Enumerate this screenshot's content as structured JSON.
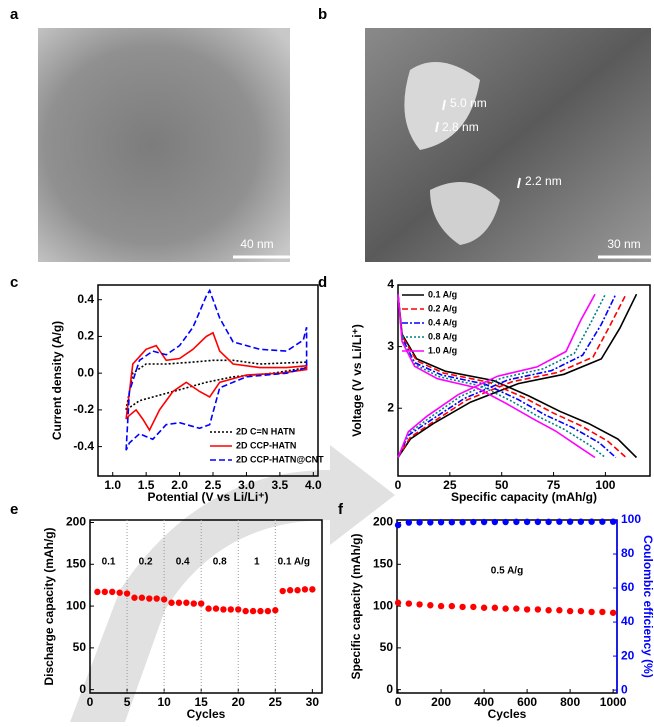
{
  "images": [
    {
      "panel": "a",
      "scale_bar": "40 nm"
    },
    {
      "panel": "b",
      "scale_bar": "30 nm",
      "annotations": [
        "5.0 nm",
        "2.8 nm",
        "2.2 nm"
      ]
    }
  ],
  "chart_data": [
    {
      "panel": "c",
      "type": "line",
      "xlabel": "Potential (V vs Li/Li⁺)",
      "ylabel": "Current density (A/g)",
      "xlim": [
        0.78,
        4.07
      ],
      "ylim": [
        -0.56,
        0.48
      ],
      "xticks": [
        {
          "value": 1,
          "label": "1.0"
        },
        1.5,
        {
          "value": 2,
          "label": "2.0"
        },
        2.5,
        {
          "value": 3,
          "label": "3.0"
        },
        3.5,
        {
          "value": 4,
          "label": "4.0"
        }
      ],
      "yticks": [
        -0.4,
        -0.2,
        {
          "value": 0,
          "label": "0.0"
        },
        0.2,
        0.4
      ],
      "legend": "lower right",
      "series": [
        {
          "name": "2D C=N HATN",
          "color": "#000000",
          "linestyle": "dotted",
          "x": [
            1.2,
            1.3,
            1.5,
            1.8,
            2.2,
            2.5,
            2.8,
            3.2,
            3.9,
            3.9,
            3.4,
            2.8,
            2.4,
            2.0,
            1.6,
            1.4,
            1.2
          ],
          "values": [
            -0.2,
            0.0,
            0.05,
            0.05,
            0.06,
            0.07,
            0.07,
            0.05,
            0.06,
            0.03,
            0.0,
            -0.02,
            -0.05,
            -0.09,
            -0.13,
            -0.15,
            -0.2
          ]
        },
        {
          "name": "2D CCP-HATN",
          "color": "#ff0000",
          "linestyle": "solid",
          "x": [
            1.2,
            1.3,
            1.5,
            1.65,
            1.8,
            2.0,
            2.2,
            2.4,
            2.5,
            2.6,
            2.8,
            3.2,
            3.6,
            3.9,
            3.9,
            3.5,
            3.0,
            2.6,
            2.45,
            2.3,
            2.1,
            1.9,
            1.7,
            1.55,
            1.45,
            1.35,
            1.25,
            1.2
          ],
          "values": [
            -0.25,
            0.05,
            0.13,
            0.15,
            0.07,
            0.08,
            0.13,
            0.2,
            0.22,
            0.12,
            0.05,
            0.03,
            0.03,
            0.04,
            0.02,
            0.0,
            -0.01,
            -0.05,
            -0.13,
            -0.1,
            -0.05,
            -0.1,
            -0.2,
            -0.31,
            -0.25,
            -0.2,
            -0.23,
            -0.25
          ]
        },
        {
          "name": "2D CCP-HATN@CNT",
          "color": "#0000ff",
          "linestyle": "dashed",
          "x": [
            1.2,
            1.25,
            1.4,
            1.6,
            1.8,
            2.0,
            2.2,
            2.4,
            2.45,
            2.6,
            2.8,
            3.2,
            3.6,
            3.85,
            3.9,
            3.9,
            3.6,
            3.0,
            2.6,
            2.45,
            2.3,
            2.0,
            1.8,
            1.6,
            1.4,
            1.25,
            1.2
          ],
          "values": [
            -0.42,
            -0.1,
            0.07,
            0.12,
            0.1,
            0.15,
            0.25,
            0.42,
            0.45,
            0.3,
            0.17,
            0.13,
            0.12,
            0.18,
            0.25,
            0.03,
            0.0,
            -0.02,
            -0.08,
            -0.28,
            -0.3,
            -0.27,
            -0.28,
            -0.36,
            -0.33,
            -0.38,
            -0.42
          ]
        }
      ]
    },
    {
      "panel": "d",
      "type": "line",
      "xlabel": "Specific capacity (mAh/g)",
      "ylabel": "Voltage (V vs Li/Li⁺)",
      "xlim": [
        0,
        121.5
      ],
      "ylim": [
        0.9,
        4
      ],
      "xticks": [
        0,
        25,
        50,
        75,
        100
      ],
      "yticks": [
        2,
        3,
        4
      ],
      "legend": "upper left",
      "series": [
        {
          "name": "0.1 A/g",
          "color": "#000000",
          "linestyle": "solid",
          "x": [
            0,
            2,
            9,
            23,
            46,
            63,
            78,
            92,
            106,
            115,
            null,
            0,
            6,
            17,
            35,
            58,
            80,
            98,
            107,
            115
          ],
          "values": [
            3.85,
            3.2,
            2.8,
            2.6,
            2.45,
            2.2,
            1.95,
            1.75,
            1.5,
            1.2,
            null,
            1.2,
            1.5,
            1.75,
            2.1,
            2.4,
            2.55,
            2.8,
            3.3,
            3.85
          ]
        },
        {
          "name": "0.2 A/g",
          "color": "#ff0000",
          "linestyle": "dashed",
          "x": [
            0,
            2,
            9,
            22,
            44,
            61,
            75,
            88,
            101,
            110,
            null,
            0,
            6,
            17,
            33,
            55,
            77,
            94,
            102,
            110
          ],
          "values": [
            3.85,
            3.17,
            2.77,
            2.57,
            2.42,
            2.17,
            1.92,
            1.72,
            1.47,
            1.2,
            null,
            1.2,
            1.53,
            1.78,
            2.13,
            2.43,
            2.58,
            2.83,
            3.33,
            3.85
          ]
        },
        {
          "name": "0.4 A/g",
          "color": "#0000ff",
          "linestyle": "dashdot",
          "x": [
            0,
            2,
            8,
            21,
            42,
            58,
            71,
            84,
            97,
            105,
            null,
            0,
            5,
            16,
            32,
            53,
            74,
            89,
            98,
            105
          ],
          "values": [
            3.85,
            3.14,
            2.74,
            2.54,
            2.39,
            2.14,
            1.89,
            1.69,
            1.44,
            1.2,
            null,
            1.2,
            1.56,
            1.81,
            2.16,
            2.46,
            2.61,
            2.86,
            3.36,
            3.85
          ]
        },
        {
          "name": "0.8 A/g",
          "color": "#008080",
          "linestyle": "dotted",
          "x": [
            0,
            2,
            8,
            20,
            40,
            55,
            68,
            80,
            92,
            100,
            null,
            0,
            5,
            15,
            30,
            50,
            70,
            85,
            93,
            100
          ],
          "values": [
            3.85,
            3.11,
            2.71,
            2.51,
            2.36,
            2.11,
            1.86,
            1.66,
            1.41,
            1.2,
            null,
            1.2,
            1.59,
            1.84,
            2.19,
            2.49,
            2.64,
            2.89,
            3.39,
            3.85
          ]
        },
        {
          "name": "1.0 A/g",
          "color": "#ff00ff",
          "linestyle": "solid",
          "x": [
            0,
            2,
            8,
            19,
            38,
            52,
            65,
            76,
            87,
            95,
            null,
            0,
            5,
            14,
            29,
            48,
            67,
            81,
            88,
            95
          ],
          "values": [
            3.85,
            3.08,
            2.68,
            2.48,
            2.33,
            2.08,
            1.83,
            1.63,
            1.38,
            1.2,
            null,
            1.2,
            1.62,
            1.87,
            2.22,
            2.52,
            2.67,
            2.92,
            3.42,
            3.85
          ]
        }
      ]
    },
    {
      "panel": "e",
      "type": "scatter",
      "xlabel": "Cycles",
      "ylabel": "Discharge capacity (mAh/g)",
      "xlim": [
        0,
        31.3
      ],
      "ylim": [
        -4,
        203
      ],
      "xticks": [
        0,
        5,
        10,
        15,
        20,
        25,
        30
      ],
      "yticks": [
        0,
        50,
        100,
        150,
        200
      ],
      "vgrid": true,
      "annotations": [
        "0.1",
        "0.2",
        "0.4",
        "0.8",
        "1",
        "0.1 A/g"
      ],
      "series": [
        {
          "color": "#ff0000",
          "x": [
            1,
            2,
            3,
            4,
            5,
            6,
            7,
            8,
            9,
            10,
            11,
            12,
            13,
            14,
            15,
            16,
            17,
            18,
            19,
            20,
            21,
            22,
            23,
            24,
            25,
            26,
            27,
            28,
            29,
            30
          ],
          "values": [
            117,
            117,
            117,
            116,
            115,
            110,
            110,
            109,
            109,
            108,
            104,
            104,
            104,
            103,
            103,
            97,
            97,
            96,
            96,
            96,
            94,
            94,
            94,
            94,
            95,
            118,
            119,
            119,
            120,
            120
          ]
        }
      ]
    },
    {
      "panel": "f",
      "type": "scatter",
      "xlabel": "Cycles",
      "ylabel": "Specific capacity (mAh/g)",
      "y2label": "Coulombic efficiency (%)",
      "y2color": "#0000ff",
      "xlim": [
        -5,
        1018
      ],
      "ylim": [
        -4,
        203
      ],
      "y2lim": [
        -1.7,
        100
      ],
      "xticks": [
        0,
        200,
        400,
        600,
        800,
        1000
      ],
      "yticks": [
        0,
        50,
        100,
        150,
        200
      ],
      "y2ticks": [
        0,
        20,
        40,
        60,
        80,
        100
      ],
      "annotations": [
        "0.5 A/g"
      ],
      "series": [
        {
          "color": "#ff0000",
          "x": [
            0,
            50,
            100,
            150,
            200,
            250,
            300,
            350,
            400,
            450,
            500,
            550,
            600,
            650,
            700,
            750,
            800,
            850,
            900,
            950,
            1000
          ],
          "values": [
            104,
            103,
            102,
            101,
            100,
            100,
            99,
            99,
            98,
            98,
            97,
            97,
            96,
            96,
            95,
            95,
            94,
            94,
            93,
            93,
            92
          ]
        },
        {
          "color": "#0000ff",
          "axis": "y2",
          "x": [
            0,
            50,
            100,
            150,
            200,
            250,
            300,
            350,
            400,
            450,
            500,
            550,
            600,
            650,
            700,
            750,
            800,
            850,
            900,
            950,
            1000
          ],
          "values": [
            97,
            98.5,
            98.6,
            98.6,
            98.7,
            98.7,
            98.7,
            98.8,
            98.8,
            98.8,
            98.8,
            98.9,
            98.9,
            98.9,
            98.9,
            99,
            99,
            99,
            99,
            99,
            99
          ]
        }
      ]
    }
  ]
}
